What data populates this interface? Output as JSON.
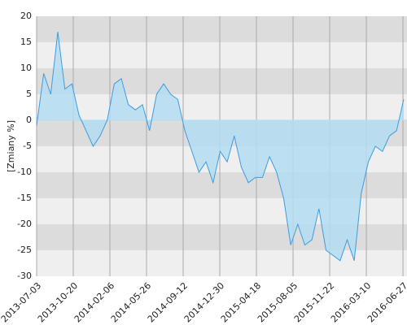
{
  "chart_data": {
    "type": "area",
    "y_label": "[Zmiany %]",
    "x": [
      "2013-07-03",
      "2013-07-24",
      "2013-08-14",
      "2013-09-04",
      "2013-09-25",
      "2013-10-16",
      "2013-11-06",
      "2013-11-27",
      "2013-12-18",
      "2014-01-08",
      "2014-01-29",
      "2014-02-19",
      "2014-03-12",
      "2014-04-02",
      "2014-04-23",
      "2014-05-14",
      "2014-06-04",
      "2014-06-25",
      "2014-07-16",
      "2014-08-06",
      "2014-08-27",
      "2014-09-17",
      "2014-10-08",
      "2014-10-29",
      "2014-11-19",
      "2014-12-10",
      "2014-12-31",
      "2015-01-21",
      "2015-02-11",
      "2015-03-04",
      "2015-03-25",
      "2015-04-15",
      "2015-05-06",
      "2015-05-27",
      "2015-06-17",
      "2015-07-08",
      "2015-07-29",
      "2015-08-19",
      "2015-09-09",
      "2015-09-30",
      "2015-10-21",
      "2015-11-11",
      "2015-12-02",
      "2015-12-23",
      "2016-01-13",
      "2016-02-03",
      "2016-02-24",
      "2016-03-16",
      "2016-04-06",
      "2016-04-27",
      "2016-05-18",
      "2016-06-08",
      "2016-06-29"
    ],
    "series": [
      {
        "color": "#3d9be0",
        "fill": "#b3ddf2",
        "values": [
          -1,
          9,
          5,
          17,
          6,
          7,
          1,
          -2,
          -5,
          -3,
          0,
          7,
          8,
          3,
          2,
          3,
          -2,
          5,
          7,
          5,
          4,
          -2,
          -6,
          -10,
          -8,
          -12,
          -6,
          -8,
          -3,
          -9,
          -12,
          -11,
          -11,
          -7,
          -10,
          -15,
          -24,
          -20,
          -24,
          -23,
          -17,
          -25,
          -26,
          -27,
          -23,
          -27,
          -14,
          -8,
          -5,
          -6,
          -3,
          -2,
          4
        ]
      }
    ],
    "xlim": [
      "2013-07-03",
      "2016-07-09"
    ],
    "xticks": [
      "2013-07-03",
      "2013-10-20",
      "2014-02-06",
      "2014-05-26",
      "2014-09-12",
      "2014-12-30",
      "2015-04-18",
      "2015-08-05",
      "2015-11-22",
      "2016-03-10",
      "2016-06-27"
    ],
    "ylim": [
      -30,
      20
    ],
    "yticks": [
      20,
      15,
      10,
      5,
      0,
      -5,
      -10,
      -15,
      -20,
      -25,
      -30
    ],
    "bands": [
      "#dcdcdc",
      "#efefef"
    ],
    "grid": true
  }
}
